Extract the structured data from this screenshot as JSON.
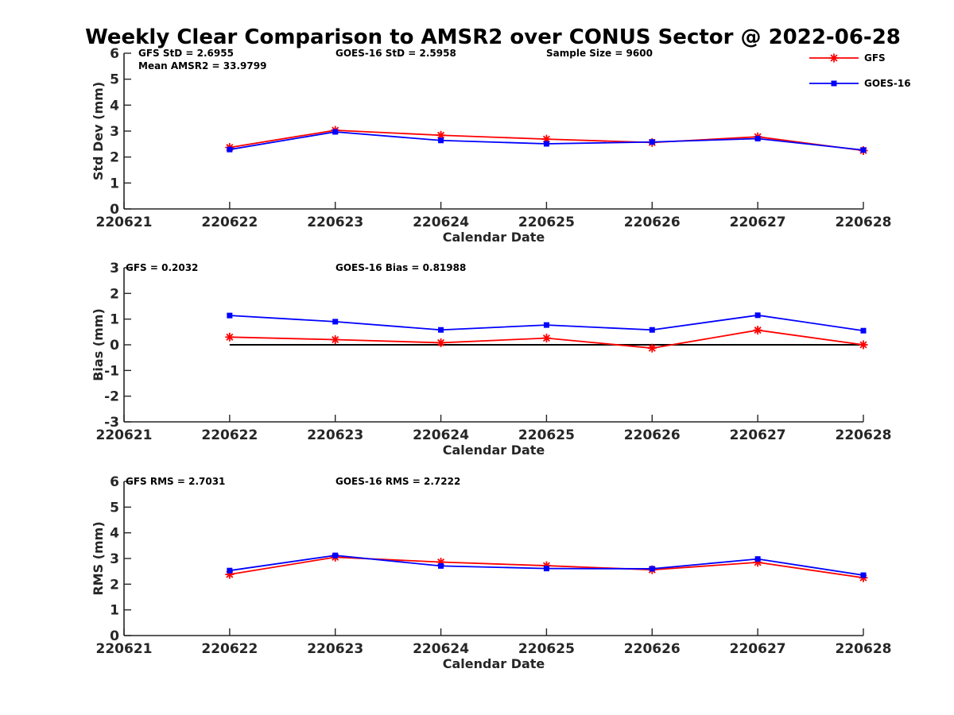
{
  "chart_data": {
    "title": "Weekly Clear Comparison to AMSR2 over CONUS Sector @ 2022-06-28",
    "legend": {
      "placement": "top-right",
      "entries": [
        {
          "name": "GFS",
          "color": "#ff0000",
          "marker": "asterisk"
        },
        {
          "name": "GOES-16",
          "color": "#0000ff",
          "marker": "square"
        }
      ]
    },
    "panels": [
      {
        "type": "line",
        "ylabel": "Std Dev (mm)",
        "xlabel": "Calendar Date",
        "x_ticks": [
          "220621",
          "220622",
          "220623",
          "220624",
          "220625",
          "220626",
          "220627",
          "220628"
        ],
        "ylim": [
          0,
          6
        ],
        "y_ticks": [
          "0",
          "1",
          "2",
          "3",
          "4",
          "5",
          "6"
        ],
        "zero_line": false,
        "annotations_top": [
          "GFS StD = 2.6955",
          "GOES-16 StD = 2.5958",
          "Sample Size = 9600"
        ],
        "annotations_second": [
          "Mean AMSR2 = 33.9799"
        ],
        "series": [
          {
            "name": "GFS",
            "x": [
              "220622",
              "220623",
              "220624",
              "220625",
              "220626",
              "220627",
              "220628"
            ],
            "values": [
              2.37,
              3.03,
              2.84,
              2.69,
              2.56,
              2.78,
              2.25
            ]
          },
          {
            "name": "GOES-16",
            "x": [
              "220622",
              "220623",
              "220624",
              "220625",
              "220626",
              "220627",
              "220628"
            ],
            "values": [
              2.29,
              2.97,
              2.64,
              2.51,
              2.58,
              2.71,
              2.27
            ]
          }
        ]
      },
      {
        "type": "line",
        "ylabel": "Bias (mm)",
        "xlabel": "Calendar Date",
        "x_ticks": [
          "220621",
          "220622",
          "220623",
          "220624",
          "220625",
          "220626",
          "220627",
          "220628"
        ],
        "ylim": [
          -3,
          3
        ],
        "y_ticks": [
          "-3",
          "-2",
          "-1",
          "0",
          "1",
          "2",
          "3"
        ],
        "zero_line": true,
        "annotations_top": [
          "GFS = 0.2032",
          "GOES-16 Bias  = 0.81988"
        ],
        "annotations_second": [],
        "series": [
          {
            "name": "GFS",
            "x": [
              "220622",
              "220623",
              "220624",
              "220625",
              "220626",
              "220627",
              "220628"
            ],
            "values": [
              0.3,
              0.2,
              0.08,
              0.26,
              -0.13,
              0.57,
              0.0
            ]
          },
          {
            "name": "GOES-16",
            "x": [
              "220622",
              "220623",
              "220624",
              "220625",
              "220626",
              "220627",
              "220628"
            ],
            "values": [
              1.14,
              0.9,
              0.58,
              0.77,
              0.58,
              1.15,
              0.55
            ]
          }
        ]
      },
      {
        "type": "line",
        "ylabel": "RMS (mm)",
        "xlabel": "Calendar Date",
        "x_ticks": [
          "220621",
          "220622",
          "220623",
          "220624",
          "220625",
          "220626",
          "220627",
          "220628"
        ],
        "ylim": [
          0,
          6
        ],
        "y_ticks": [
          "0",
          "1",
          "2",
          "3",
          "4",
          "5",
          "6"
        ],
        "zero_line": false,
        "annotations_top": [
          "GFS RMS = 2.7031",
          "GOES-16 RMS = 2.7222"
        ],
        "annotations_second": [],
        "series": [
          {
            "name": "GFS",
            "x": [
              "220622",
              "220623",
              "220624",
              "220625",
              "220626",
              "220627",
              "220628"
            ],
            "values": [
              2.38,
              3.05,
              2.86,
              2.72,
              2.56,
              2.85,
              2.25
            ]
          },
          {
            "name": "GOES-16",
            "x": [
              "220622",
              "220623",
              "220624",
              "220625",
              "220626",
              "220627",
              "220628"
            ],
            "values": [
              2.53,
              3.12,
              2.71,
              2.61,
              2.6,
              2.98,
              2.35
            ]
          }
        ]
      }
    ]
  }
}
